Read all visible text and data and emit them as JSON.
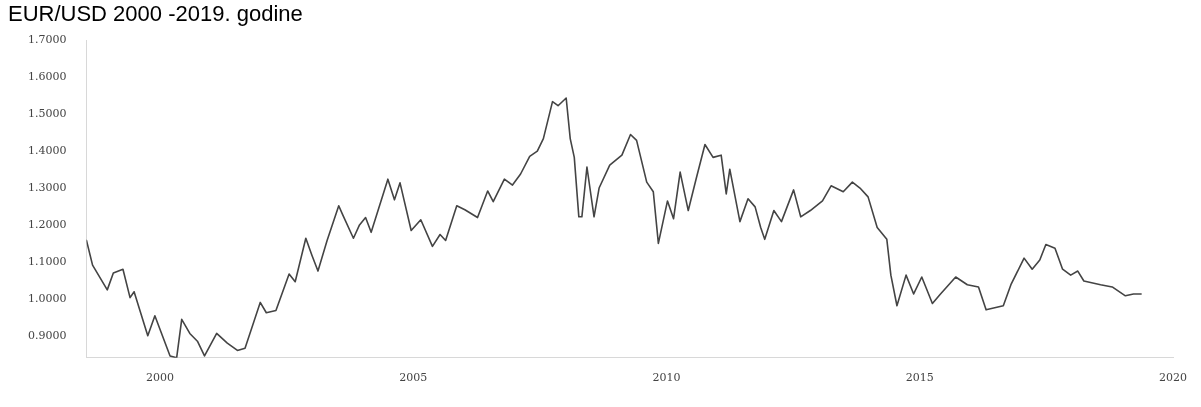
{
  "chart_data": {
    "type": "line",
    "title": "EUR/USD 2000 -2019. godine",
    "marker": "none",
    "legend": false,
    "xlim": [
      1998.55,
      2020
    ],
    "xticks": [
      2000,
      2005,
      2010,
      2015,
      2020
    ],
    "ylim": [
      0.84,
      1.7
    ],
    "yticks": [
      {
        "value": 0.9,
        "label": "0.9000"
      },
      {
        "value": 1.0,
        "label": "1.0000"
      },
      {
        "value": 1.1,
        "label": "1.1000"
      },
      {
        "value": 1.2,
        "label": "1.2000"
      },
      {
        "value": 1.3,
        "label": "1.3000"
      },
      {
        "value": 1.4,
        "label": "1.4000"
      },
      {
        "value": 1.5,
        "label": "1.5000"
      },
      {
        "value": 1.6,
        "label": "1.6000"
      },
      {
        "value": 1.7,
        "label": "1.7000"
      }
    ],
    "series": [
      {
        "color": "#444444",
        "x": [
          1998.55,
          1998.67,
          1998.96,
          1999.08,
          1999.27,
          1999.41,
          1999.49,
          1999.76,
          1999.9,
          2000.2,
          2000.33,
          2000.43,
          2000.59,
          2000.74,
          2000.88,
          2001.12,
          2001.33,
          2001.53,
          2001.68,
          2001.98,
          2002.1,
          2002.29,
          2002.55,
          2002.67,
          2002.88,
          2003.0,
          2003.12,
          2003.3,
          2003.53,
          2003.6,
          2003.82,
          2003.94,
          2004.06,
          2004.17,
          2004.5,
          2004.63,
          2004.74,
          2004.96,
          2005.15,
          2005.38,
          2005.53,
          2005.64,
          2005.86,
          2006.02,
          2006.27,
          2006.47,
          2006.58,
          2006.8,
          2006.96,
          2007.12,
          2007.3,
          2007.45,
          2007.57,
          2007.75,
          2007.86,
          2008.02,
          2008.1,
          2008.18,
          2008.27,
          2008.33,
          2008.43,
          2008.57,
          2008.67,
          2008.88,
          2009.12,
          2009.29,
          2009.41,
          2009.61,
          2009.74,
          2009.84,
          2010.02,
          2010.14,
          2010.27,
          2010.43,
          2010.59,
          2010.76,
          2010.92,
          2011.08,
          2011.18,
          2011.25,
          2011.45,
          2011.61,
          2011.75,
          2011.86,
          2011.94,
          2012.12,
          2012.27,
          2012.51,
          2012.65,
          2012.84,
          2013.08,
          2013.25,
          2013.49,
          2013.67,
          2013.82,
          2013.98,
          2014.16,
          2014.35,
          2014.43,
          2014.55,
          2014.73,
          2014.88,
          2015.04,
          2015.25,
          2015.41,
          2015.71,
          2015.94,
          2016.16,
          2016.31,
          2016.65,
          2016.8,
          2017.06,
          2017.22,
          2017.37,
          2017.49,
          2017.67,
          2017.82,
          2017.98,
          2018.12,
          2018.24,
          2018.57,
          2018.8,
          2019.06,
          2019.22,
          2019.37
        ],
        "values": [
          1.158,
          1.091,
          1.024,
          1.07,
          1.08,
          1.003,
          1.019,
          0.9,
          0.954,
          0.845,
          0.84,
          0.944,
          0.906,
          0.885,
          0.845,
          0.906,
          0.88,
          0.86,
          0.866,
          0.99,
          0.962,
          0.968,
          1.067,
          1.046,
          1.164,
          1.118,
          1.075,
          1.158,
          1.252,
          1.23,
          1.164,
          1.2,
          1.22,
          1.18,
          1.324,
          1.268,
          1.314,
          1.185,
          1.214,
          1.142,
          1.174,
          1.158,
          1.252,
          1.241,
          1.22,
          1.292,
          1.263,
          1.324,
          1.308,
          1.338,
          1.386,
          1.4,
          1.434,
          1.534,
          1.523,
          1.544,
          1.434,
          1.383,
          1.222,
          1.222,
          1.357,
          1.222,
          1.3,
          1.362,
          1.389,
          1.445,
          1.429,
          1.316,
          1.29,
          1.15,
          1.265,
          1.217,
          1.343,
          1.239,
          1.327,
          1.418,
          1.383,
          1.389,
          1.284,
          1.351,
          1.209,
          1.271,
          1.249,
          1.193,
          1.161,
          1.239,
          1.209,
          1.295,
          1.222,
          1.239,
          1.265,
          1.306,
          1.29,
          1.316,
          1.3,
          1.276,
          1.193,
          1.161,
          1.064,
          0.981,
          1.064,
          1.013,
          1.059,
          0.987,
          1.013,
          1.059,
          1.038,
          1.032,
          0.97,
          0.981,
          1.038,
          1.11,
          1.08,
          1.105,
          1.147,
          1.137,
          1.08,
          1.064,
          1.075,
          1.048,
          1.038,
          1.032,
          1.008,
          1.013,
          1.013
        ]
      }
    ]
  }
}
